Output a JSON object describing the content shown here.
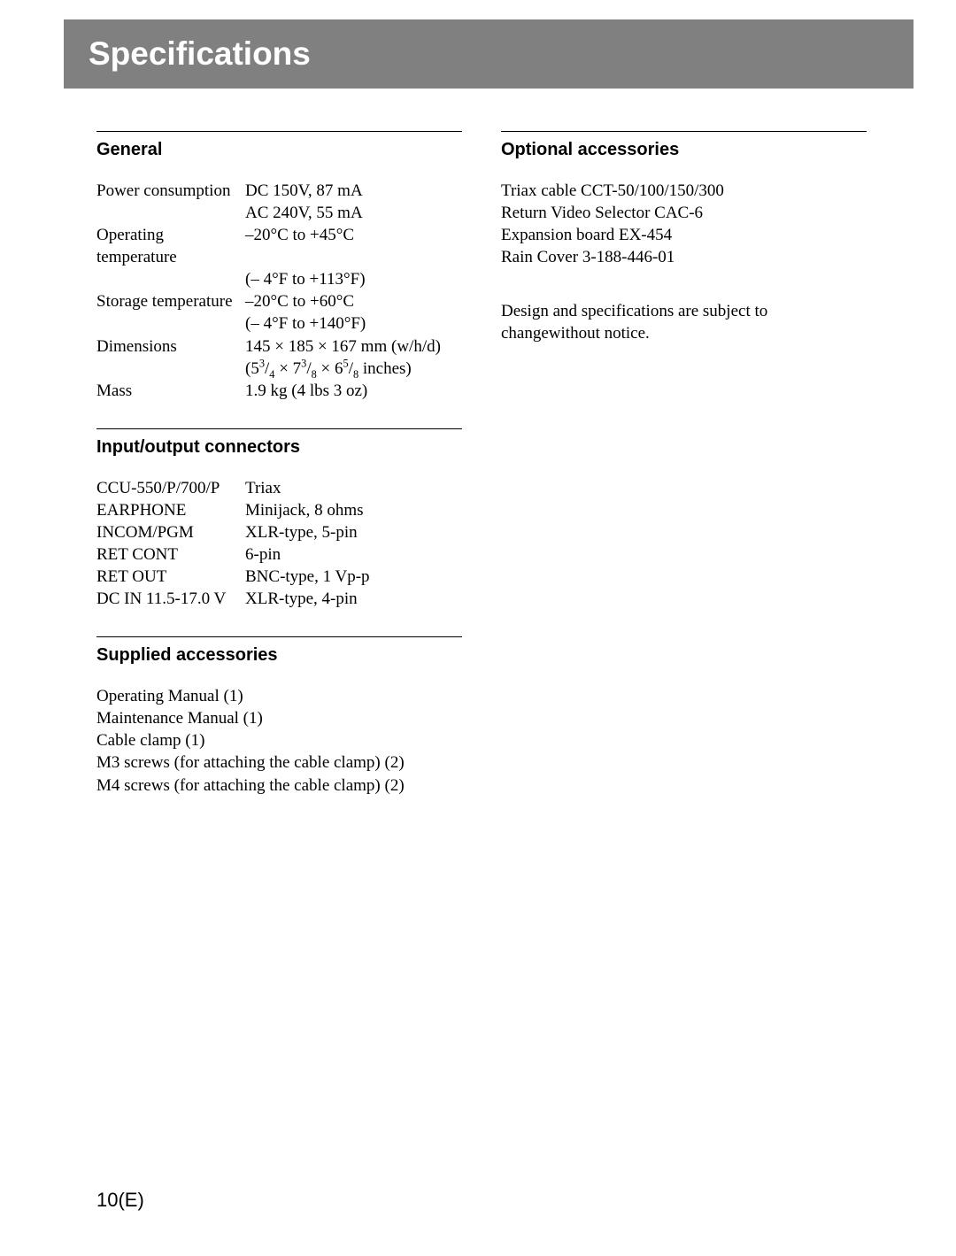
{
  "page_title": "Specifications",
  "page_number": "10(E)",
  "left": {
    "general": {
      "heading": "General",
      "rows": [
        {
          "label": "Power consumption",
          "value": "DC 150V, 87 mA"
        },
        {
          "label": "",
          "value": "AC 240V, 55 mA"
        },
        {
          "label": "Operating temperature",
          "value": "–20°C to +45°C"
        },
        {
          "label": "",
          "value": "(– 4°F  to +113°F)"
        },
        {
          "label": "Storage temperature",
          "value": "–20°C to +60°C"
        },
        {
          "label": "",
          "value": " (– 4°F  to +140°F)"
        },
        {
          "label": "Dimensions",
          "value": "145 × 185 × 167 mm (w/h/d)"
        },
        {
          "label": "",
          "value_html": "(5<span class='frac'><sup>3</sup>/<sub>4</sub></span> × 7<span class='frac'><sup>3</sup>/<sub>8</sub></span> × 6<span class='frac'><sup>5</sup>/<sub>8</sub></span> inches)"
        },
        {
          "label": "Mass",
          "value": "1.9 kg (4 lbs 3 oz)"
        }
      ]
    },
    "io": {
      "heading": "Input/output connectors",
      "rows": [
        {
          "label": "CCU-550/P/700/P",
          "value": "Triax"
        },
        {
          "label": "EARPHONE",
          "value": "Minijack, 8 ohms"
        },
        {
          "label": "INCOM/PGM",
          "value": "XLR-type, 5-pin"
        },
        {
          "label": "RET CONT",
          "value": "6-pin"
        },
        {
          "label": "RET OUT",
          "value": "BNC-type, 1 Vp-p"
        },
        {
          "label": "DC IN 11.5-17.0 V",
          "value": "XLR-type, 4-pin"
        }
      ]
    },
    "supplied": {
      "heading": "Supplied accessories",
      "items": [
        "Operating Manual (1)",
        "Maintenance Manual (1)",
        "Cable clamp (1)",
        "M3 screws (for attaching the cable clamp) (2)",
        "M4 screws (for attaching the cable clamp) (2)"
      ]
    }
  },
  "right": {
    "optional": {
      "heading": "Optional accessories",
      "items": [
        "Triax cable  CCT-50/100/150/300",
        "Return Video Selector  CAC-6",
        "Expansion board  EX-454",
        "Rain Cover  3-188-446-01"
      ]
    },
    "note": "Design and specifications are subject to changewithout notice."
  }
}
